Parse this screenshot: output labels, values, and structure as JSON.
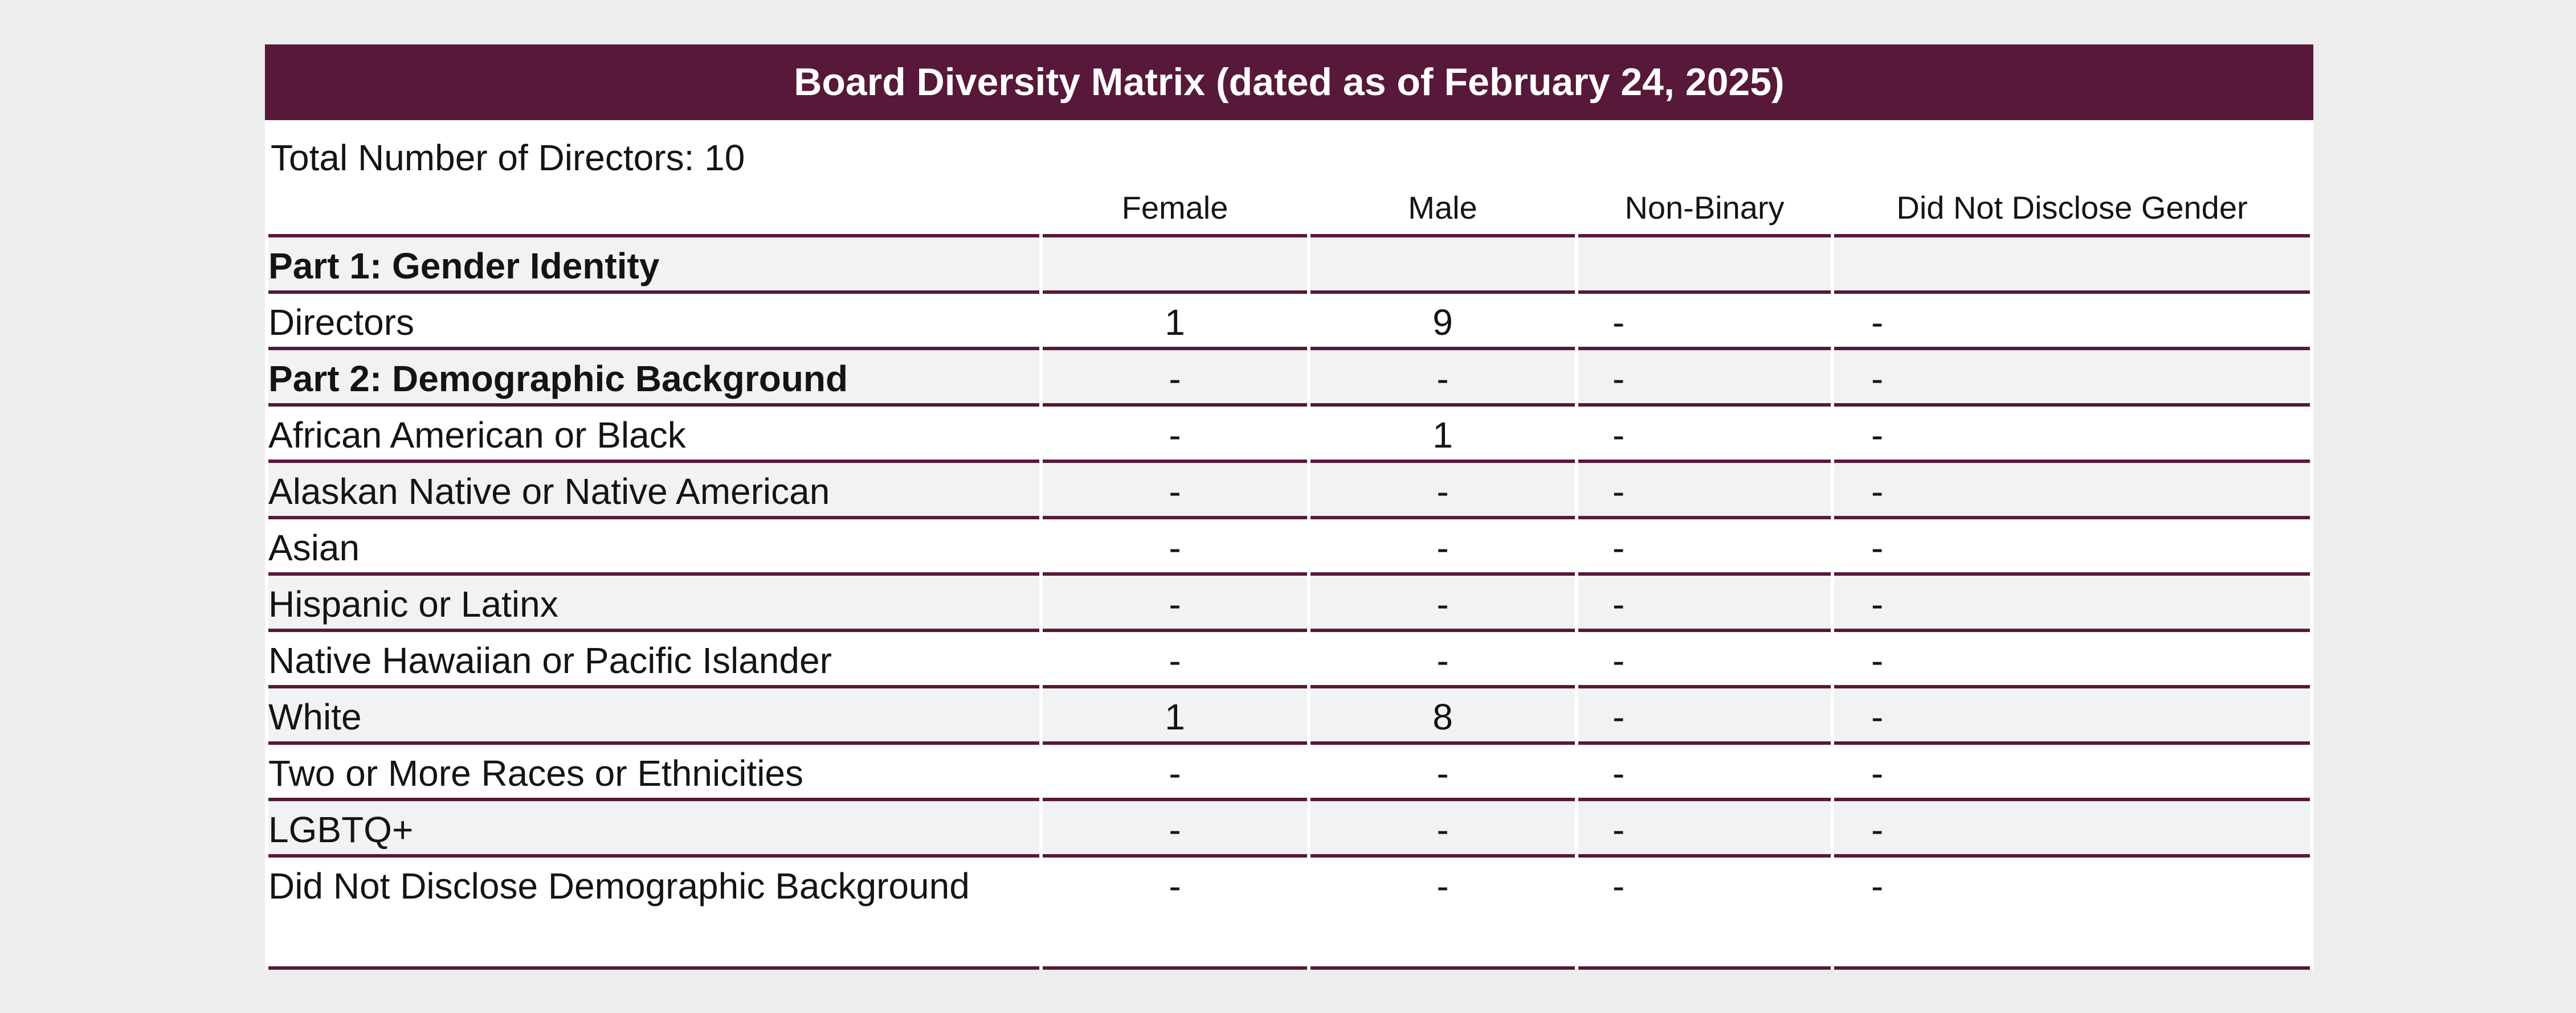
{
  "theme": {
    "title_bar_bg": "#571839",
    "title_bar_text": "#FFFFFF",
    "row_shade": "#F1F2F4",
    "page_bg": "#EDEDEE",
    "rule_color": "#571839",
    "text_color": "#141414"
  },
  "matrix": {
    "title": "Board Diversity Matrix (dated as of February 24, 2025)",
    "total_label": "Total Number of Directors: 10",
    "columns": [
      "Female",
      "Male",
      "Non-Binary",
      "Did Not Disclose Gender"
    ],
    "rows": [
      {
        "label": "Part 1: Gender Identity",
        "section": true,
        "values": [
          "",
          "",
          "",
          ""
        ]
      },
      {
        "label": "Directors",
        "section": false,
        "values": [
          "1",
          "9",
          "-",
          "-"
        ]
      },
      {
        "label": "Part 2: Demographic Background",
        "section": true,
        "values": [
          "-",
          "-",
          "-",
          "-"
        ]
      },
      {
        "label": "African American or Black",
        "section": false,
        "values": [
          "-",
          "1",
          "-",
          "-"
        ]
      },
      {
        "label": "Alaskan Native or Native American",
        "section": false,
        "values": [
          "-",
          "-",
          "-",
          "-"
        ]
      },
      {
        "label": "Asian",
        "section": false,
        "values": [
          "-",
          "-",
          "-",
          "-"
        ]
      },
      {
        "label": "Hispanic or Latinx",
        "section": false,
        "values": [
          "-",
          "-",
          "-",
          "-"
        ]
      },
      {
        "label": "Native Hawaiian or Pacific Islander",
        "section": false,
        "values": [
          "-",
          "-",
          "-",
          "-"
        ]
      },
      {
        "label": "White",
        "section": false,
        "values": [
          "1",
          "8",
          "-",
          "-"
        ]
      },
      {
        "label": "Two or More Races or Ethnicities",
        "section": false,
        "values": [
          "-",
          "-",
          "-",
          "-"
        ]
      },
      {
        "label": "LGBTQ+",
        "section": false,
        "values": [
          "-",
          "-",
          "-",
          "-"
        ]
      },
      {
        "label": "Did Not Disclose Demographic Background",
        "section": false,
        "values": [
          "-",
          "-",
          "-",
          "-"
        ]
      }
    ]
  }
}
